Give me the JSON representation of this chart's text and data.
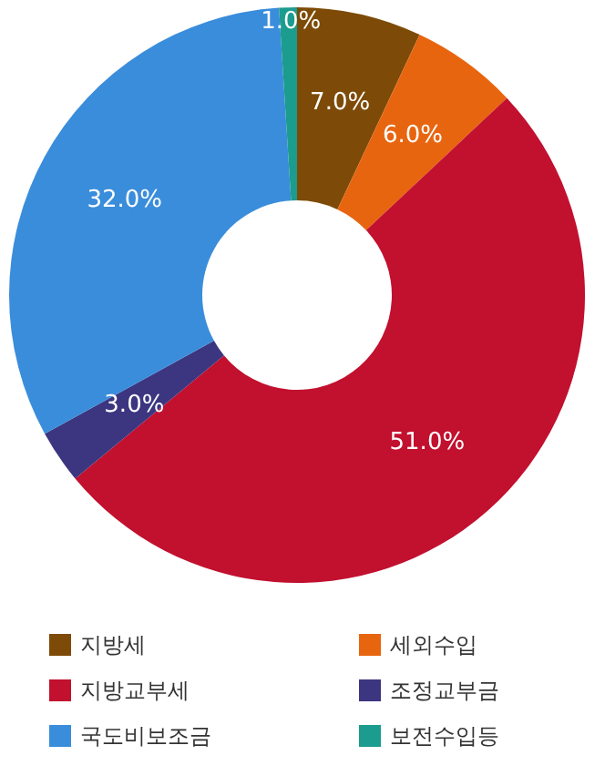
{
  "chart_data": {
    "type": "donut",
    "categories": [
      "지방세",
      "세외수입",
      "지방교부세",
      "조정교부금",
      "국도비보조금",
      "보전수입등"
    ],
    "values": [
      7,
      6,
      51,
      3,
      32,
      1
    ],
    "value_labels": [
      "7.0%",
      "6.0%",
      "51.0%",
      "3.0%",
      "32.0%",
      "1.0%"
    ],
    "colors": [
      "#7d4b07",
      "#e8650f",
      "#c2102f",
      "#3c3680",
      "#3a8ddb",
      "#1b9c8f"
    ],
    "legend": "bottom"
  }
}
